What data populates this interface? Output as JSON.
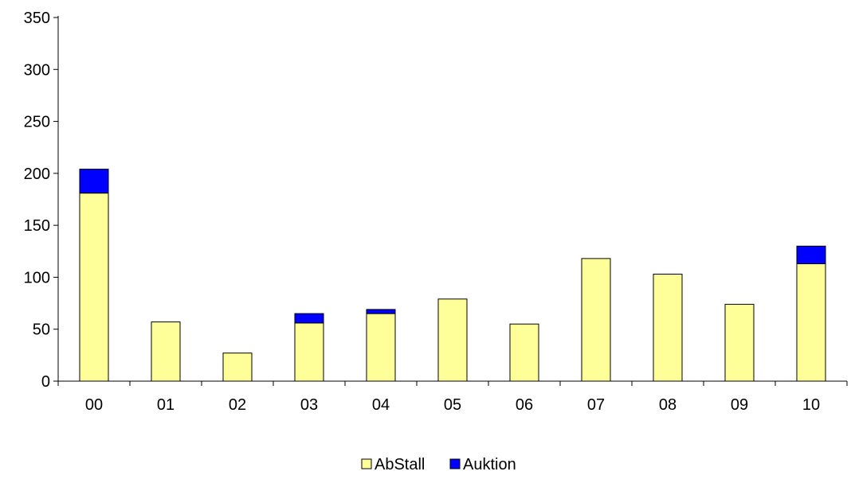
{
  "chart_data": {
    "type": "bar",
    "stacked": true,
    "categories": [
      "00",
      "01",
      "02",
      "03",
      "04",
      "05",
      "06",
      "07",
      "08",
      "09",
      "10"
    ],
    "series": [
      {
        "name": "AbStall",
        "values": [
          181,
          57,
          27,
          56,
          65,
          79,
          55,
          118,
          103,
          74,
          113
        ],
        "color": "#ffff99"
      },
      {
        "name": "Auktion",
        "values": [
          23,
          0,
          0,
          9,
          4,
          0,
          0,
          0,
          0,
          0,
          17
        ],
        "color": "#0000ff"
      }
    ],
    "ylim": [
      0,
      350
    ],
    "yticks": [
      0,
      50,
      100,
      150,
      200,
      250,
      300,
      350
    ],
    "grid": false,
    "legend": "bottom"
  }
}
